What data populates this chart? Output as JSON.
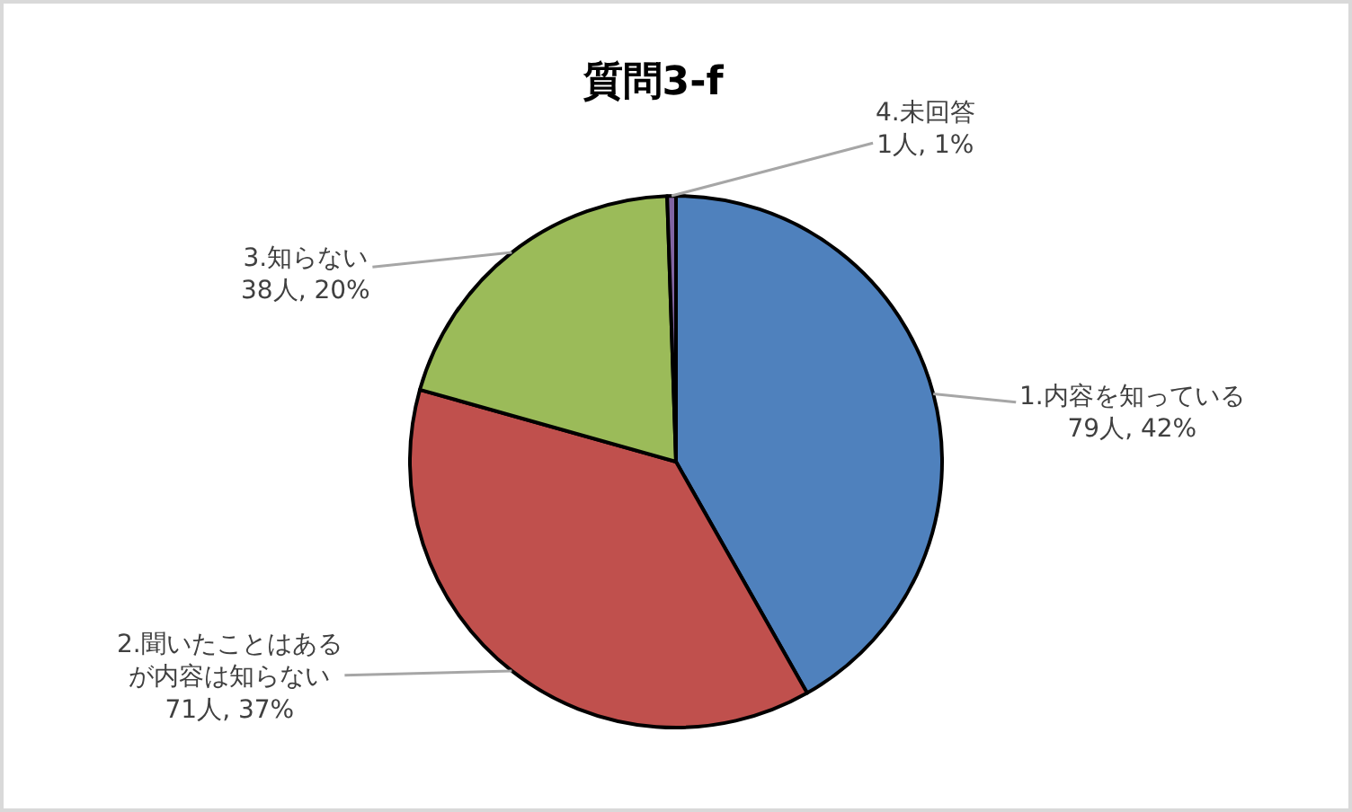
{
  "chart_data": {
    "type": "pie",
    "title": "質問3-f",
    "categories": [
      "1.内容を知っている",
      "2.聞いたことはあるが内容は知らない",
      "3.知らない",
      "4.未回答"
    ],
    "values": [
      79,
      71,
      38,
      1
    ],
    "value_labels": [
      "79人, 42%",
      "71人, 37%",
      "38人, 20%",
      "1人, 1%"
    ],
    "colors": [
      "#4f81bd",
      "#c0504d",
      "#9bbb59",
      "#8064a2"
    ],
    "legend": false
  }
}
